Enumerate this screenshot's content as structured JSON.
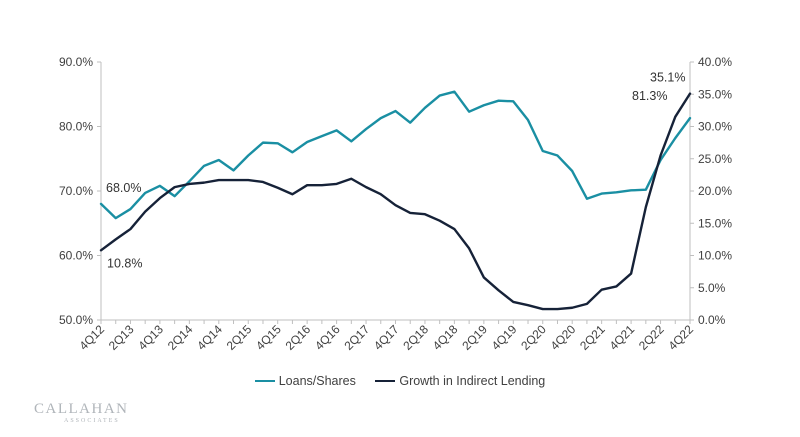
{
  "chart_data": {
    "type": "line",
    "categories": [
      "4Q12",
      "1Q13",
      "2Q13",
      "3Q13",
      "4Q13",
      "1Q14",
      "2Q14",
      "3Q14",
      "4Q14",
      "1Q15",
      "2Q15",
      "3Q15",
      "4Q15",
      "1Q16",
      "2Q16",
      "3Q16",
      "4Q16",
      "1Q17",
      "2Q17",
      "3Q17",
      "4Q17",
      "1Q18",
      "2Q18",
      "3Q18",
      "4Q18",
      "1Q19",
      "2Q19",
      "3Q19",
      "4Q19",
      "1Q20",
      "2Q20",
      "3Q20",
      "4Q20",
      "1Q21",
      "2Q21",
      "3Q21",
      "4Q21",
      "1Q22",
      "2Q22",
      "3Q22",
      "4Q22"
    ],
    "tick_labels": [
      "4Q12",
      "2Q13",
      "4Q13",
      "2Q14",
      "4Q14",
      "2Q15",
      "4Q15",
      "2Q16",
      "4Q16",
      "2Q17",
      "4Q17",
      "2Q18",
      "4Q18",
      "2Q19",
      "4Q19",
      "2Q20",
      "4Q20",
      "2Q21",
      "4Q21",
      "2Q22",
      "4Q22"
    ],
    "series": [
      {
        "name": "Loans/Shares",
        "axis": "left",
        "color": "#1a8fa3",
        "values": [
          68.0,
          65.8,
          67.2,
          69.7,
          70.8,
          69.2,
          71.5,
          73.9,
          74.8,
          73.2,
          75.5,
          77.5,
          77.4,
          76.0,
          77.6,
          78.5,
          79.4,
          77.7,
          79.6,
          81.3,
          82.4,
          80.6,
          82.9,
          84.8,
          85.4,
          82.3,
          83.3,
          84.0,
          83.9,
          81.0,
          76.2,
          75.5,
          73.1,
          68.8,
          69.6,
          69.8,
          70.1,
          70.2,
          74.8,
          78.2,
          81.3
        ]
      },
      {
        "name": "Growth in Indirect Lending",
        "axis": "right",
        "color": "#162238",
        "values": [
          10.8,
          12.5,
          14.1,
          16.8,
          18.9,
          20.6,
          21.1,
          21.3,
          21.7,
          21.7,
          21.7,
          21.4,
          20.5,
          19.5,
          20.9,
          20.9,
          21.1,
          21.9,
          20.6,
          19.5,
          17.8,
          16.6,
          16.4,
          15.4,
          14.1,
          11.1,
          6.6,
          4.6,
          2.8,
          2.3,
          1.7,
          1.7,
          1.9,
          2.5,
          4.7,
          5.2,
          7.2,
          17.5,
          25.5,
          31.5,
          35.1
        ]
      }
    ],
    "left_axis": {
      "min": 50,
      "max": 90,
      "step": 10,
      "tick_labels": [
        "50.0%",
        "60.0%",
        "70.0%",
        "80.0%",
        "90.0%"
      ]
    },
    "right_axis": {
      "min": 0,
      "max": 40,
      "step": 5,
      "tick_labels": [
        "0.0%",
        "5.0%",
        "10.0%",
        "15.0%",
        "20.0%",
        "25.0%",
        "30.0%",
        "35.0%",
        "40.0%"
      ]
    },
    "annotations": [
      {
        "text": "68.0%",
        "series": 0,
        "index": 0
      },
      {
        "text": "10.8%",
        "series": 1,
        "index": 0
      },
      {
        "text": "81.3%",
        "series": 0,
        "index": 40
      },
      {
        "text": "35.1%",
        "series": 1,
        "index": 40
      }
    ],
    "grid": false,
    "legend_position": "bottom"
  },
  "legend": {
    "loans_label": "Loans/Shares",
    "growth_label": "Growth in Indirect Lending",
    "loans_color": "#1a8fa3",
    "growth_color": "#162238"
  },
  "logo": {
    "main": "CALLAHAN",
    "sub": "ASSOCIATES"
  }
}
